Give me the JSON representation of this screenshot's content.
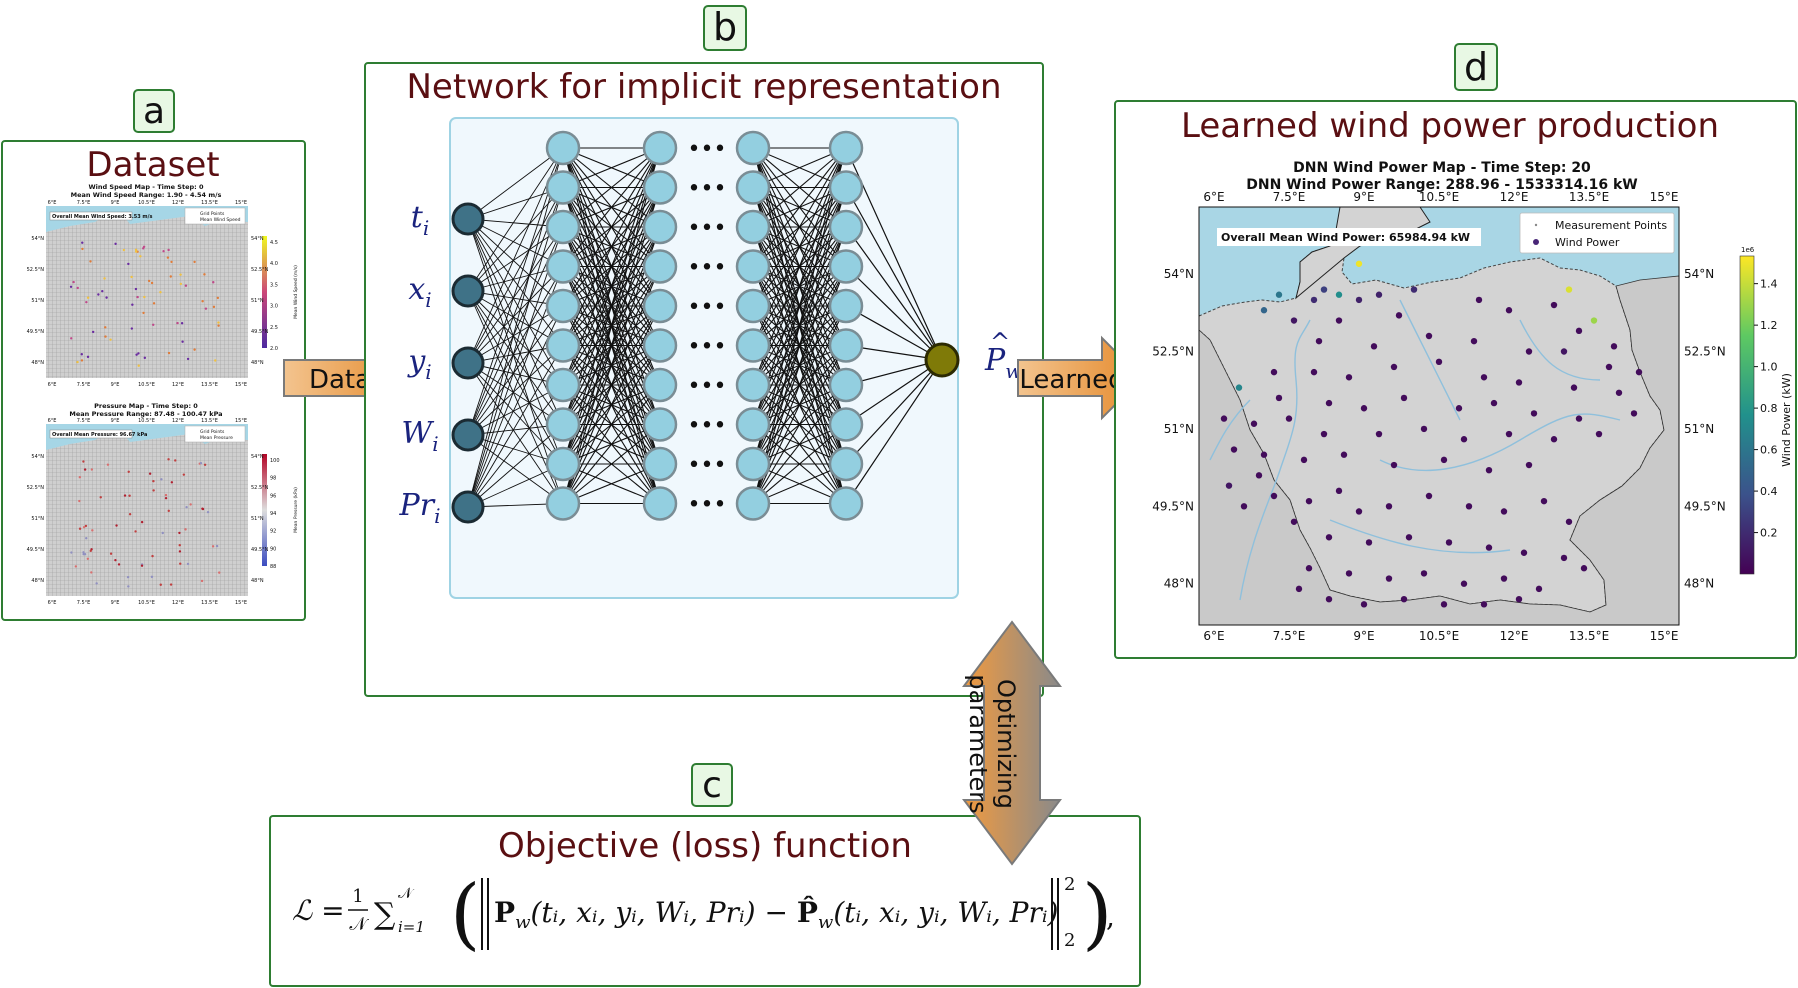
{
  "panels": {
    "a": {
      "badge": "a",
      "title": "Dataset"
    },
    "b": {
      "badge": "b",
      "title": "Network for implicit representation"
    },
    "c": {
      "badge": "c",
      "title": "Objective (loss) function"
    },
    "d": {
      "badge": "d",
      "title": "Learned wind power production"
    }
  },
  "arrows": {
    "data": "Data",
    "learned": "Learned",
    "optimizing_line1": "Optimizing",
    "optimizing_line2": "parameters"
  },
  "network": {
    "inputs": [
      {
        "base": "t",
        "sub": "i"
      },
      {
        "base": "x",
        "sub": "i"
      },
      {
        "base": "y",
        "sub": "i"
      },
      {
        "base": "W",
        "sub": "i"
      },
      {
        "base": "Pr",
        "sub": "i"
      }
    ],
    "output": {
      "base": "P",
      "hat": "^",
      "sub": "w"
    },
    "ellipsis": "•••",
    "hidden_layer_count_shown": 4,
    "neurons_per_layer": 10
  },
  "loss": {
    "lhs": "ℒ = ",
    "frac_num": "1",
    "frac_den": "𝒩",
    "sum_sym": "∑",
    "sum_top": "𝒩",
    "sum_bot": "i=1",
    "term1": "P",
    "term1_sub": "w",
    "args": "(tᵢ, xᵢ, yᵢ, Wᵢ, Prᵢ)",
    "minus": " − ",
    "term2": "P̂",
    "norm_sub": "2",
    "norm_sup": "2",
    "trail": ","
  },
  "mini_maps": {
    "wind": {
      "title": "Wind Speed Map - Time Step: 0",
      "subtitle": "Mean Wind Speed Range: 1.90 - 4.54 m/s",
      "box": "Overall Mean Wind Speed: 3.53 m/s",
      "legend": [
        "Grid Points",
        "Mean Wind Speed"
      ],
      "cbar_label": "Mean Wind Speed (m/s)",
      "cbar_ticks": [
        "4.5",
        "4.0",
        "3.5",
        "3.0",
        "2.5",
        "2.0"
      ],
      "lat_ticks": [
        "54°N",
        "52.5°N",
        "51°N",
        "49.5°N",
        "48°N"
      ],
      "lon_ticks": [
        "6°E",
        "7.5°E",
        "9°E",
        "10.5°E",
        "12°E",
        "13.5°E",
        "15°E"
      ]
    },
    "pressure": {
      "title": "Pressure Map - Time Step: 0",
      "subtitle": "Mean Pressure Range: 87.48 - 100.47 kPa",
      "box": "Overall Mean Pressure: 96.67 kPa",
      "legend": [
        "Grid Points",
        "Mean Pressure"
      ],
      "cbar_label": "Mean Pressure (kPa)",
      "cbar_ticks": [
        "100",
        "98",
        "96",
        "94",
        "92",
        "90",
        "88"
      ],
      "lat_ticks": [
        "54°N",
        "52.5°N",
        "51°N",
        "49.5°N",
        "48°N"
      ],
      "lon_ticks": [
        "6°E",
        "7.5°E",
        "9°E",
        "10.5°E",
        "12°E",
        "13.5°E",
        "15°E"
      ]
    }
  },
  "chart_data": {
    "type": "scatter",
    "title": "DNN Wind Power Map - Time Step: 20",
    "subtitle": "DNN Wind Power Range: 288.96 - 1533314.16 kW",
    "annotation": "Overall Mean Wind Power: 65984.94 kW",
    "legend": [
      "Measurement Points",
      "Wind Power"
    ],
    "legend_position": "top-right",
    "colorbar": {
      "label": "Wind Power (kW)",
      "multiplier": "1e6",
      "ticks": [
        "1.4",
        "1.2",
        "1.0",
        "0.8",
        "0.6",
        "0.4",
        "0.2"
      ],
      "tick_values": [
        1.4,
        1.2,
        1.0,
        0.8,
        0.6,
        0.4,
        0.2
      ],
      "range": [
        0.0003,
        1.5333
      ]
    },
    "xlim": [
      5.7,
      15.3
    ],
    "ylim": [
      47.2,
      55.3
    ],
    "x_ticks": [
      "6°E",
      "7.5°E",
      "9°E",
      "10.5°E",
      "12°E",
      "13.5°E",
      "15°E"
    ],
    "x_tick_values": [
      6,
      7.5,
      9,
      10.5,
      12,
      13.5,
      15
    ],
    "y_ticks": [
      "54°N",
      "52.5°N",
      "51°N",
      "49.5°N",
      "48°N"
    ],
    "y_tick_values": [
      54,
      52.5,
      51,
      49.5,
      48
    ],
    "points": [
      [
        8.9,
        54.2,
        1.5
      ],
      [
        13.1,
        53.7,
        1.45
      ],
      [
        13.6,
        53.1,
        1.3
      ],
      [
        8.5,
        53.6,
        0.75
      ],
      [
        7.3,
        53.6,
        0.6
      ],
      [
        7.0,
        53.3,
        0.5
      ],
      [
        8.2,
        53.7,
        0.3
      ],
      [
        8.0,
        53.5,
        0.2
      ],
      [
        9.3,
        53.6,
        0.15
      ],
      [
        10.0,
        53.7,
        0.2
      ],
      [
        8.9,
        53.5,
        0.15
      ],
      [
        11.3,
        53.5,
        0.05
      ],
      [
        7.6,
        53.1,
        0.1
      ],
      [
        8.5,
        53.1,
        0.05
      ],
      [
        9.7,
        53.2,
        0.05
      ],
      [
        11.9,
        53.3,
        0.05
      ],
      [
        12.8,
        53.4,
        0.05
      ],
      [
        13.3,
        52.9,
        0.05
      ],
      [
        14.0,
        52.6,
        0.05
      ],
      [
        8.1,
        52.7,
        0.05
      ],
      [
        9.2,
        52.6,
        0.05
      ],
      [
        10.3,
        52.8,
        0.05
      ],
      [
        11.2,
        52.7,
        0.05
      ],
      [
        12.3,
        52.5,
        0.05
      ],
      [
        13.0,
        52.5,
        0.1
      ],
      [
        13.9,
        52.2,
        0.05
      ],
      [
        14.5,
        52.1,
        0.05
      ],
      [
        7.2,
        52.1,
        0.05
      ],
      [
        8.0,
        52.1,
        0.05
      ],
      [
        8.7,
        52.0,
        0.05
      ],
      [
        9.6,
        52.2,
        0.05
      ],
      [
        10.5,
        52.3,
        0.05
      ],
      [
        11.4,
        52.0,
        0.05
      ],
      [
        12.1,
        51.9,
        0.05
      ],
      [
        13.2,
        51.8,
        0.05
      ],
      [
        14.1,
        51.7,
        0.05
      ],
      [
        6.5,
        51.8,
        0.7
      ],
      [
        7.3,
        51.6,
        0.05
      ],
      [
        8.3,
        51.5,
        0.05
      ],
      [
        9.0,
        51.4,
        0.05
      ],
      [
        9.8,
        51.6,
        0.05
      ],
      [
        10.9,
        51.4,
        0.05
      ],
      [
        11.6,
        51.5,
        0.05
      ],
      [
        12.4,
        51.3,
        0.05
      ],
      [
        13.3,
        51.2,
        0.05
      ],
      [
        14.4,
        51.3,
        0.05
      ],
      [
        6.2,
        51.2,
        0.05
      ],
      [
        6.8,
        51.1,
        0.05
      ],
      [
        7.5,
        51.2,
        0.05
      ],
      [
        8.2,
        50.9,
        0.05
      ],
      [
        9.3,
        50.9,
        0.05
      ],
      [
        10.2,
        51.0,
        0.05
      ],
      [
        11.0,
        50.8,
        0.05
      ],
      [
        11.9,
        50.9,
        0.05
      ],
      [
        12.8,
        50.8,
        0.05
      ],
      [
        13.7,
        50.9,
        0.05
      ],
      [
        6.4,
        50.6,
        0.05
      ],
      [
        7.0,
        50.5,
        0.05
      ],
      [
        7.8,
        50.4,
        0.05
      ],
      [
        8.6,
        50.5,
        0.05
      ],
      [
        9.6,
        50.3,
        0.05
      ],
      [
        10.6,
        50.4,
        0.05
      ],
      [
        11.5,
        50.2,
        0.05
      ],
      [
        12.3,
        50.3,
        0.05
      ],
      [
        6.3,
        49.9,
        0.1
      ],
      [
        6.6,
        49.5,
        0.05
      ],
      [
        7.2,
        49.7,
        0.05
      ],
      [
        7.9,
        49.6,
        0.05
      ],
      [
        8.5,
        49.8,
        0.05
      ],
      [
        8.9,
        49.4,
        0.05
      ],
      [
        9.5,
        49.5,
        0.05
      ],
      [
        10.3,
        49.7,
        0.05
      ],
      [
        11.1,
        49.5,
        0.05
      ],
      [
        11.8,
        49.4,
        0.05
      ],
      [
        12.6,
        49.6,
        0.05
      ],
      [
        13.1,
        49.2,
        0.05
      ],
      [
        7.6,
        49.2,
        0.05
      ],
      [
        8.3,
        48.9,
        0.05
      ],
      [
        9.1,
        48.8,
        0.05
      ],
      [
        9.9,
        48.9,
        0.05
      ],
      [
        10.7,
        48.8,
        0.05
      ],
      [
        11.5,
        48.7,
        0.05
      ],
      [
        12.2,
        48.6,
        0.05
      ],
      [
        13.0,
        48.5,
        0.05
      ],
      [
        7.9,
        48.3,
        0.05
      ],
      [
        8.7,
        48.2,
        0.05
      ],
      [
        9.5,
        48.1,
        0.05
      ],
      [
        10.2,
        48.2,
        0.05
      ],
      [
        11.0,
        48.0,
        0.05
      ],
      [
        11.8,
        48.1,
        0.05
      ],
      [
        12.5,
        47.9,
        0.05
      ],
      [
        8.3,
        47.7,
        0.05
      ],
      [
        9.0,
        47.6,
        0.05
      ],
      [
        9.8,
        47.7,
        0.05
      ],
      [
        10.6,
        47.6,
        0.05
      ],
      [
        11.4,
        47.6,
        0.05
      ],
      [
        12.1,
        47.7,
        0.05
      ],
      [
        7.7,
        47.9,
        0.05
      ],
      [
        13.4,
        48.3,
        0.05
      ],
      [
        6.9,
        50.1,
        0.05
      ]
    ]
  }
}
